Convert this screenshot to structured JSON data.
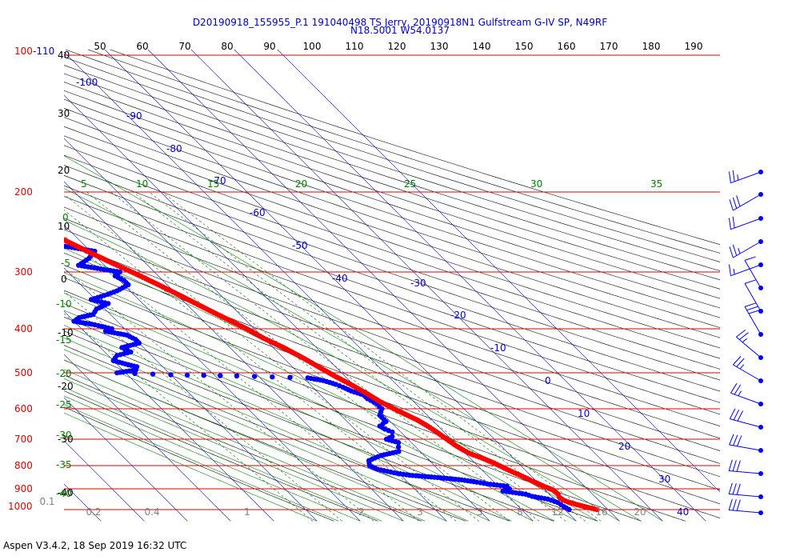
{
  "header": {
    "line1": "D20190918_155955_P.1 191040498 TS Jerry, 20190918N1 Gulfstream G-IV SP, N49RF",
    "line2": "N18.5001 W54.0137"
  },
  "footer": "Aspen V3.4.2, 18 Sep 2019  16:32 UTC",
  "colors": {
    "isobar": "#dd0000",
    "isotherm": "#0000cc",
    "dry_adiabat": "#000000",
    "moist_adiabat": "#008000",
    "mixing_ratio": "#007000",
    "dewpoint": "#0000ff",
    "temperature": "#ff0000",
    "theta_scale": "#000000",
    "wind": "#0000ff",
    "gray_labels": "#808080"
  },
  "chart_data": {
    "type": "skew-t",
    "y_axis_scale": "log pressure",
    "pressure_labels": [
      "100",
      "-110",
      "200",
      "300",
      "400",
      "500",
      "600",
      "700",
      "800",
      "900",
      "1000"
    ],
    "pressure_levels": [
      100,
      200,
      300,
      400,
      500,
      600,
      700,
      800,
      900,
      1000
    ],
    "theta_top_labels": [
      "50",
      "60",
      "70",
      "80",
      "90",
      "100",
      "110",
      "120",
      "130",
      "140",
      "150",
      "160",
      "170",
      "180",
      "190"
    ],
    "left_temp_labels": [
      "40",
      "30",
      "20",
      "10",
      "0",
      "-10",
      "-20",
      "-30",
      "-40"
    ],
    "isotherm_labels": [
      "-100",
      "-90",
      "-80",
      "-70",
      "-60",
      "-50",
      "-40",
      "-30",
      "-20",
      "-10",
      "0",
      "10",
      "20",
      "30",
      "40"
    ],
    "moist_adiabat_labels": [
      "5",
      "10",
      "15",
      "20",
      "25",
      "30",
      "35"
    ],
    "left_moist_labels": [
      "0",
      "-5",
      "-10",
      "-15",
      "-20",
      "-25",
      "-30",
      "-35",
      "-40"
    ],
    "mixing_ratio_labels": [
      "0.1",
      "0.2",
      "0.4",
      "1",
      "2",
      "3",
      "5",
      "8",
      "12",
      "16",
      "20"
    ],
    "temperature": [
      {
        "p": 1000,
        "t": 27.5
      },
      {
        "p": 990,
        "t": 26.0
      },
      {
        "p": 975,
        "t": 24.0
      },
      {
        "p": 962,
        "t": 22.5
      },
      {
        "p": 952,
        "t": 21.8
      },
      {
        "p": 940,
        "t": 21.6
      },
      {
        "p": 925,
        "t": 22.0
      },
      {
        "p": 905,
        "t": 21.8
      },
      {
        "p": 890,
        "t": 20.6
      },
      {
        "p": 872,
        "t": 19.5
      },
      {
        "p": 860,
        "t": 18.8
      },
      {
        "p": 850,
        "t": 18.2
      },
      {
        "p": 830,
        "t": 16.9
      },
      {
        "p": 810,
        "t": 15.6
      },
      {
        "p": 790,
        "t": 14.4
      },
      {
        "p": 770,
        "t": 12.8
      },
      {
        "p": 755,
        "t": 11.2
      },
      {
        "p": 740,
        "t": 10.3
      },
      {
        "p": 720,
        "t": 9.5
      },
      {
        "p": 700,
        "t": 9.0
      },
      {
        "p": 675,
        "t": 8.3
      },
      {
        "p": 655,
        "t": 7.6
      },
      {
        "p": 635,
        "t": 6.6
      },
      {
        "p": 620,
        "t": 5.4
      },
      {
        "p": 600,
        "t": 3.8
      },
      {
        "p": 578,
        "t": 2.2
      },
      {
        "p": 555,
        "t": 1.0
      },
      {
        "p": 530,
        "t": -0.6
      },
      {
        "p": 510,
        "t": -2.2
      },
      {
        "p": 490,
        "t": -3.6
      },
      {
        "p": 465,
        "t": -5.4
      },
      {
        "p": 440,
        "t": -7.6
      },
      {
        "p": 420,
        "t": -10.0
      },
      {
        "p": 400,
        "t": -11.8
      },
      {
        "p": 380,
        "t": -14.2
      },
      {
        "p": 360,
        "t": -16.7
      },
      {
        "p": 340,
        "t": -19.2
      },
      {
        "p": 320,
        "t": -22.0
      },
      {
        "p": 300,
        "t": -25.2
      },
      {
        "p": 285,
        "t": -28.0
      },
      {
        "p": 270,
        "t": -30.7
      },
      {
        "p": 255,
        "t": -33.5
      },
      {
        "p": 240,
        "t": -36.4
      },
      {
        "p": 226,
        "t": -39.6
      },
      {
        "p": 212,
        "t": -42.6
      },
      {
        "p": 200,
        "t": -45.6
      },
      {
        "p": 190,
        "t": -47.9
      },
      {
        "p": 181,
        "t": -50.4
      },
      {
        "p": 176,
        "t": -52.0
      },
      {
        "p": 167,
        "t": -55.6
      }
    ],
    "dewpoint": [
      {
        "p": 1000,
        "td": 21.0
      },
      {
        "p": 985,
        "td": 20.5
      },
      {
        "p": 965,
        "td": 20.0
      },
      {
        "p": 948,
        "td": 18.5
      },
      {
        "p": 935,
        "td": 15.5
      },
      {
        "p": 925,
        "td": 14.5
      },
      {
        "p": 910,
        "td": 10.0
      },
      {
        "p": 900,
        "td": 12.0
      },
      {
        "p": 888,
        "td": 12.0
      },
      {
        "p": 878,
        "td": 8.0
      },
      {
        "p": 870,
        "td": 6.0
      },
      {
        "p": 860,
        "td": 3.0
      },
      {
        "p": 850,
        "td": -2.0
      },
      {
        "p": 840,
        "td": -8.0
      },
      {
        "p": 830,
        "td": -11.0
      },
      {
        "p": 815,
        "td": -14.0
      },
      {
        "p": 800,
        "td": -15.0
      },
      {
        "p": 780,
        "td": -14.0
      },
      {
        "p": 760,
        "td": -10.0
      },
      {
        "p": 745,
        "td": -5.0
      },
      {
        "p": 728,
        "td": -4.0
      },
      {
        "p": 712,
        "td": -3.0
      },
      {
        "p": 700,
        "td": -5.0
      },
      {
        "p": 690,
        "td": -3.0
      },
      {
        "p": 675,
        "td": -2.0
      },
      {
        "p": 665,
        "td": -3.0
      },
      {
        "p": 655,
        "td": -3.5
      },
      {
        "p": 640,
        "td": -1.0
      },
      {
        "p": 620,
        "td": -1.0
      },
      {
        "p": 600,
        "td": 1.0
      },
      {
        "p": 585,
        "td": 1.0
      },
      {
        "p": 570,
        "td": 0.0
      },
      {
        "p": 560,
        "td": 0.0
      },
      {
        "p": 548,
        "td": -2.0
      },
      {
        "p": 538,
        "td": -3.0
      },
      {
        "p": 530,
        "td": -4.0
      },
      {
        "p": 520,
        "td": -6.0
      },
      {
        "p": 513,
        "td": -9.0
      },
      {
        "p": 508,
        "td": -25.0
      },
      {
        "p": 505,
        "td": -40.0
      },
      {
        "p": 500,
        "td": -52.0
      },
      {
        "p": 493,
        "td": -47.0
      },
      {
        "p": 485,
        "td": -46.0
      },
      {
        "p": 478,
        "td": -48.0
      },
      {
        "p": 470,
        "td": -50.0
      },
      {
        "p": 458,
        "td": -48.0
      },
      {
        "p": 450,
        "td": -44.0
      },
      {
        "p": 440,
        "td": -45.0
      },
      {
        "p": 430,
        "td": -40.0
      },
      {
        "p": 422,
        "td": -40.0
      },
      {
        "p": 413,
        "td": -41.0
      },
      {
        "p": 405,
        "td": -45.0
      },
      {
        "p": 400,
        "td": -43.0
      },
      {
        "p": 392,
        "td": -46.0
      },
      {
        "p": 385,
        "td": -50.0
      },
      {
        "p": 378,
        "td": -48.0
      },
      {
        "p": 372,
        "td": -44.0
      },
      {
        "p": 362,
        "td": -42.0
      },
      {
        "p": 352,
        "td": -38.0
      },
      {
        "p": 345,
        "td": -41.0
      },
      {
        "p": 336,
        "td": -36.0
      },
      {
        "p": 330,
        "td": -33.0
      },
      {
        "p": 320,
        "td": -29.0
      },
      {
        "p": 313,
        "td": -29.0
      },
      {
        "p": 306,
        "td": -30.0
      },
      {
        "p": 300,
        "td": -28.0
      },
      {
        "p": 290,
        "td": -36.0
      },
      {
        "p": 280,
        "td": -32.0
      },
      {
        "p": 270,
        "td": -29.0
      },
      {
        "p": 262,
        "td": -36.0
      },
      {
        "p": 256,
        "td": -44.0
      },
      {
        "p": 249,
        "td": -51.0
      },
      {
        "p": 240,
        "td": -54.0
      },
      {
        "p": 228,
        "td": -58.0
      },
      {
        "p": 215,
        "td": -63.0
      },
      {
        "p": 209,
        "td": -66.0
      },
      {
        "p": 205,
        "td": -67.0
      }
    ],
    "wind_barbs": [
      {
        "p": 100,
        "speed_kt": 25,
        "dir_deg": 250
      },
      {
        "p": 200,
        "speed_kt": 30,
        "dir_deg": 240
      },
      {
        "p": 240,
        "speed_kt": 20,
        "dir_deg": 250
      },
      {
        "p": 280,
        "speed_kt": 25,
        "dir_deg": 240
      },
      {
        "p": 320,
        "speed_kt": 15,
        "dir_deg": 250
      },
      {
        "p": 360,
        "speed_kt": 10,
        "dir_deg": 330
      },
      {
        "p": 400,
        "speed_kt": 10,
        "dir_deg": 330
      },
      {
        "p": 440,
        "speed_kt": 30,
        "dir_deg": 330
      },
      {
        "p": 480,
        "speed_kt": 25,
        "dir_deg": 310
      },
      {
        "p": 530,
        "speed_kt": 25,
        "dir_deg": 300
      },
      {
        "p": 580,
        "speed_kt": 25,
        "dir_deg": 290
      },
      {
        "p": 640,
        "speed_kt": 30,
        "dir_deg": 285
      },
      {
        "p": 710,
        "speed_kt": 30,
        "dir_deg": 280
      },
      {
        "p": 790,
        "speed_kt": 30,
        "dir_deg": 275
      },
      {
        "p": 880,
        "speed_kt": 30,
        "dir_deg": 275
      },
      {
        "p": 970,
        "speed_kt": 30,
        "dir_deg": 275
      },
      {
        "p": 1000,
        "speed_kt": 25,
        "dir_deg": 270
      }
    ]
  }
}
